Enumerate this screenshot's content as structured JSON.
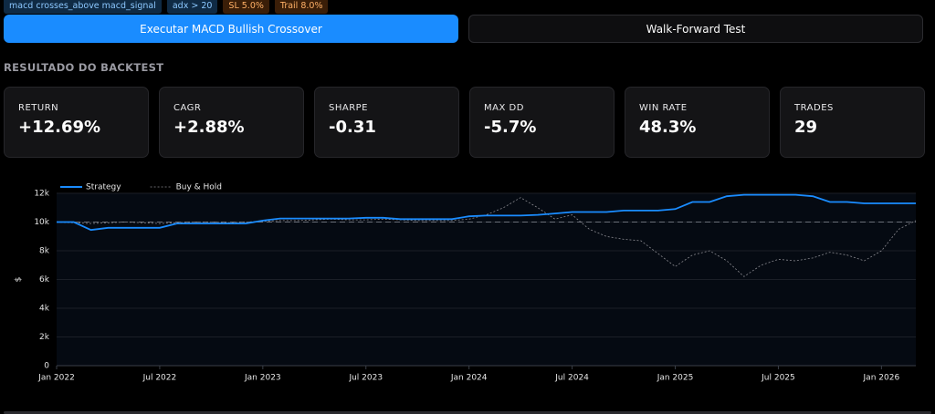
{
  "tags": [
    "macd crosses_above macd_signal",
    "adx > 20",
    "SL 5.0%",
    "Trail 8.0%"
  ],
  "buttons": {
    "primary": "Executar MACD Bullish Crossover",
    "secondary": "Walk-Forward Test"
  },
  "section_title": "RESULTADO DO BACKTEST",
  "metrics": [
    {
      "label": "RETURN",
      "value": "+12.69%"
    },
    {
      "label": "CAGR",
      "value": "+2.88%"
    },
    {
      "label": "SHARPE",
      "value": "-0.31"
    },
    {
      "label": "MAX DD",
      "value": "-5.7%"
    },
    {
      "label": "WIN RATE",
      "value": "48.3%"
    },
    {
      "label": "TRADES",
      "value": "29"
    }
  ],
  "chart_data": {
    "type": "line",
    "ylabel": "$",
    "x": [
      "2022-01",
      "2022-02",
      "2022-03",
      "2022-04",
      "2022-05",
      "2022-06",
      "2022-07",
      "2022-08",
      "2022-09",
      "2022-10",
      "2022-11",
      "2022-12",
      "2023-01",
      "2023-02",
      "2023-03",
      "2023-04",
      "2023-05",
      "2023-06",
      "2023-07",
      "2023-08",
      "2023-09",
      "2023-10",
      "2023-11",
      "2023-12",
      "2024-01",
      "2024-02",
      "2024-03",
      "2024-04",
      "2024-05",
      "2024-06",
      "2024-07",
      "2024-08",
      "2024-09",
      "2024-10",
      "2024-11",
      "2024-12",
      "2025-01",
      "2025-02",
      "2025-03",
      "2025-04",
      "2025-05",
      "2025-06",
      "2025-07",
      "2025-08",
      "2025-09",
      "2025-10",
      "2025-11",
      "2025-12",
      "2026-01",
      "2026-02",
      "2026-03"
    ],
    "series": [
      {
        "name": "Strategy",
        "color": "#1a8cff",
        "dash": false,
        "values": [
          10000,
          10000,
          9450,
          9600,
          9600,
          9600,
          9600,
          9900,
          9900,
          9900,
          9900,
          9900,
          10100,
          10250,
          10250,
          10250,
          10250,
          10250,
          10300,
          10300,
          10200,
          10200,
          10200,
          10200,
          10400,
          10450,
          10450,
          10450,
          10500,
          10600,
          10700,
          10700,
          10700,
          10800,
          10800,
          10800,
          10900,
          11400,
          11400,
          11800,
          11900,
          11900,
          11900,
          11900,
          11800,
          11400,
          11400,
          11300,
          11300,
          11300,
          11300
        ]
      },
      {
        "name": "Buy & Hold",
        "color": "#8a8a90",
        "dash": true,
        "values": [
          10000,
          9950,
          9900,
          9950,
          10000,
          9950,
          9900,
          9950,
          10000,
          10000,
          9950,
          10000,
          10050,
          10100,
          10100,
          10150,
          10200,
          10150,
          10150,
          10200,
          10150,
          10100,
          10100,
          10100,
          10200,
          10500,
          11000,
          11700,
          11000,
          10200,
          10500,
          9500,
          9000,
          8800,
          8700,
          7800,
          6900,
          7700,
          8000,
          7300,
          6200,
          7000,
          7400,
          7300,
          7500,
          7900,
          7700,
          7300,
          8000,
          9500,
          10100
        ]
      }
    ],
    "reference_line": 10000,
    "xlim": [
      "2022-01",
      "2026-03"
    ],
    "xticks": [
      {
        "value": "2022-01",
        "label": "Jan 2022"
      },
      {
        "value": "2022-07",
        "label": "Jul 2022"
      },
      {
        "value": "2023-01",
        "label": "Jan 2023"
      },
      {
        "value": "2023-07",
        "label": "Jul 2023"
      },
      {
        "value": "2024-01",
        "label": "Jan 2024"
      },
      {
        "value": "2024-07",
        "label": "Jul 2024"
      },
      {
        "value": "2025-01",
        "label": "Jan 2025"
      },
      {
        "value": "2025-07",
        "label": "Jul 2025"
      },
      {
        "value": "2026-01",
        "label": "Jan 2026"
      }
    ],
    "ylim": [
      0,
      12000
    ],
    "yticks": [
      0,
      {
        "value": 2000,
        "label": "2k"
      },
      {
        "value": 4000,
        "label": "4k"
      },
      {
        "value": 6000,
        "label": "6k"
      },
      {
        "value": 8000,
        "label": "8k"
      },
      {
        "value": 10000,
        "label": "10k"
      },
      {
        "value": 12000,
        "label": "12k"
      }
    ],
    "grid": true,
    "legend": "top-left"
  }
}
